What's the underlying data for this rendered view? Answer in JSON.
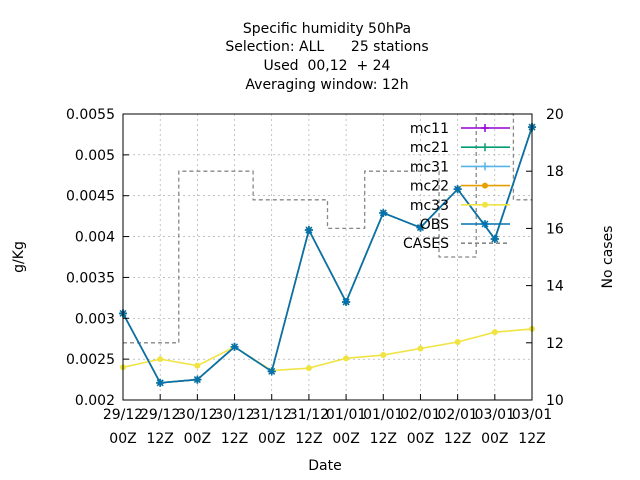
{
  "chart_data": {
    "type": "line",
    "title_lines": [
      "Specific humidity 50hPa",
      "Selection: ALL      25 stations",
      "Used  00,12  + 24",
      "Averaging window: 12h"
    ],
    "xlabel": "Date",
    "ylabel": "g/Kg",
    "y2label": "No cases",
    "x_ticks": [
      [
        "29/12",
        "00Z"
      ],
      [
        "29/12",
        "12Z"
      ],
      [
        "30/12",
        "00Z"
      ],
      [
        "30/12",
        "12Z"
      ],
      [
        "31/12",
        "00Z"
      ],
      [
        "31/12",
        "12Z"
      ],
      [
        "01/01",
        "00Z"
      ],
      [
        "01/01",
        "12Z"
      ],
      [
        "02/01",
        "00Z"
      ],
      [
        "02/01",
        "12Z"
      ],
      [
        "03/01",
        "00Z"
      ],
      [
        "03/01",
        "12Z"
      ]
    ],
    "ylim": [
      0.002,
      0.0055
    ],
    "y_ticks": [
      "0.002",
      "0.0025",
      "0.003",
      "0.0035",
      "0.004",
      "0.0045",
      "0.005",
      "0.0055"
    ],
    "y2lim": [
      10,
      20
    ],
    "y2_ticks": [
      "10",
      "12",
      "14",
      "16",
      "18",
      "20"
    ],
    "grid": true,
    "legend_position": "top-right",
    "series": [
      {
        "name": "mc11",
        "color": "#9400d3",
        "marker": "plus",
        "values": [
          0.00306,
          0.00221,
          0.00225,
          0.00265,
          0.00235,
          0.00408,
          0.0032,
          0.00429,
          0.00411,
          0.00458,
          0.00397,
          0.00534
        ]
      },
      {
        "name": "mc21",
        "color": "#009e73",
        "marker": "plus",
        "values": [
          0.00306,
          0.00221,
          0.00225,
          0.00265,
          0.00235,
          0.00408,
          0.0032,
          0.00429,
          0.00411,
          0.00458,
          0.00397,
          0.00534
        ]
      },
      {
        "name": "mc31",
        "color": "#56b4e9",
        "marker": "plus",
        "values": [
          0.00306,
          0.00221,
          0.00225,
          0.00265,
          0.00235,
          0.00408,
          0.0032,
          0.00429,
          0.00411,
          0.00458,
          0.00397,
          0.00534
        ]
      },
      {
        "name": "mc22",
        "color": "#e69f00",
        "marker": "circle",
        "values": [
          0.00306,
          0.00221,
          0.00225,
          0.00265,
          0.00235,
          0.00408,
          0.0032,
          0.00429,
          0.00411,
          0.00458,
          0.00397,
          0.00534
        ]
      },
      {
        "name": "mc33",
        "color": "#f0e442",
        "marker": "circle",
        "values": [
          0.0024,
          0.0025,
          0.00242,
          0.00265,
          0.00236,
          0.00239,
          0.00251,
          0.00255,
          0.00263,
          0.00271,
          0.00283,
          0.00287
        ]
      },
      {
        "name": "OBS",
        "color": "#0072b2",
        "marker": "star",
        "values": [
          0.00306,
          0.00221,
          0.00225,
          0.00265,
          0.00235,
          0.00408,
          0.0032,
          0.00429,
          0.00411,
          0.00458,
          0.00397,
          0.00534
        ]
      }
    ],
    "cases": {
      "name": "CASES",
      "color": "#888888",
      "axis": "right",
      "style": "dashed",
      "values": [
        12,
        12,
        18,
        18,
        17,
        17,
        16,
        18,
        18,
        15,
        20,
        17
      ]
    }
  }
}
